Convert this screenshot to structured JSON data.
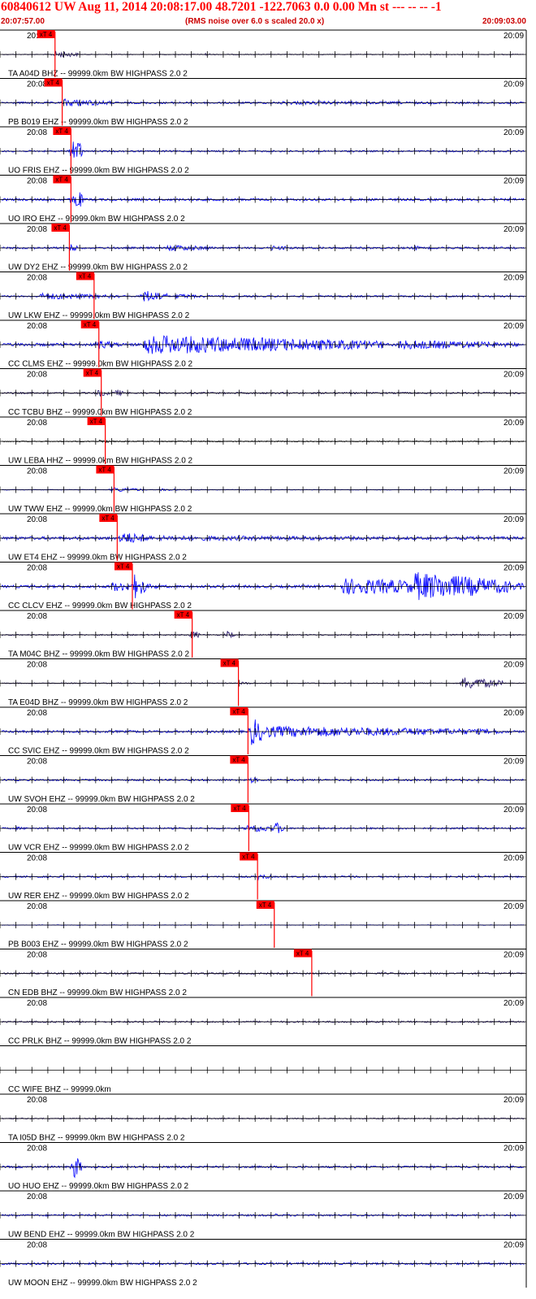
{
  "header": {
    "title": "60840612 UW Aug 11, 2014 20:08:17.00   48.7201 -122.7063  0.0 0.00 Mn st --- -- --  -1",
    "start_time": "20:07:57.00",
    "rms_note": "(RMS noise over 6.0 s scaled 20.0 x)",
    "end_time": "20:09:03.00"
  },
  "colors": {
    "trace_blue": "#0000ff",
    "trace_dark": "#2a1a6e",
    "trace_black": "#000000",
    "pick": "#ff0000",
    "header": "#ff0000"
  },
  "chart_data": {
    "type": "line",
    "x_start": "20:07:57.00",
    "x_end": "20:09:03.00",
    "x_range_s": [
      0,
      66
    ],
    "tick_label_left": "20:08",
    "tick_label_right": "20:09",
    "pick_label": "xT 4",
    "traces": [
      {
        "label": "TA A04D BHZ -- 99999.0km BW  HIGHPASS  2.0  2",
        "color": "dark",
        "pick_s": 6.9,
        "amp": 0.5,
        "bursts": [
          {
            "t": 6.8,
            "dur": 3,
            "amp": 4.5
          },
          {
            "t": 25.6,
            "dur": 1,
            "amp": 2
          }
        ]
      },
      {
        "label": "PB B019 EHZ -- 99999.0km BW  HIGHPASS  2.0  2",
        "color": "blue",
        "pick_s": 7.8,
        "amp": 1.2,
        "bursts": [
          {
            "t": 8,
            "dur": 6,
            "amp": 5
          },
          {
            "t": 35,
            "dur": 30,
            "amp": 2.2
          }
        ]
      },
      {
        "label": "UO FRIS EHZ -- 99999.0km BW  HIGHPASS  2.0  2",
        "color": "blue",
        "pick_s": 8.9,
        "amp": 1.0,
        "bursts": [
          {
            "t": 9.1,
            "dur": 1.3,
            "amp": 18
          }
        ]
      },
      {
        "label": "UO IRO EHZ -- 99999.0km BW  HIGHPASS  2.0  2",
        "color": "blue",
        "pick_s": 8.9,
        "amp": 1.4,
        "bursts": [
          {
            "t": 9.2,
            "dur": 1.2,
            "amp": 16
          }
        ]
      },
      {
        "label": "UW DY2 EHZ -- 99999.0km BW  HIGHPASS  2.0  2",
        "color": "blue",
        "pick_s": 8.7,
        "amp": 1.2,
        "bursts": [
          {
            "t": 8.8,
            "dur": 1,
            "amp": 5
          },
          {
            "t": 21,
            "dur": 6,
            "amp": 4
          },
          {
            "t": 34,
            "dur": 3,
            "amp": 3
          },
          {
            "t": 52,
            "dur": 0.5,
            "amp": 5
          }
        ]
      },
      {
        "label": "UW LKW EHZ -- 99999.0km BW  HIGHPASS  2.0  2",
        "color": "blue",
        "pick_s": 11.8,
        "amp": 1.0,
        "bursts": [
          {
            "t": 5,
            "dur": 10,
            "amp": 4
          },
          {
            "t": 18,
            "dur": 3,
            "amp": 8
          },
          {
            "t": 22,
            "dur": 4,
            "amp": 3
          }
        ]
      },
      {
        "label": "CC CLMS EHZ -- 99999.0km BW  HIGHPASS  2.0  2",
        "color": "blue",
        "pick_s": 12.4,
        "amp": 1.8,
        "bursts": [
          {
            "t": 12,
            "dur": 3,
            "amp": 6
          },
          {
            "t": 18,
            "dur": 30,
            "amp": 12
          },
          {
            "t": 50,
            "dur": 15,
            "amp": 6
          }
        ]
      },
      {
        "label": "CC TCBU BHZ -- 99999.0km BW  HIGHPASS  2.0  2",
        "color": "dark",
        "pick_s": 12.7,
        "amp": 1.0,
        "bursts": [
          {
            "t": 12.2,
            "dur": 1.5,
            "amp": 5
          },
          {
            "t": 14.5,
            "dur": 1,
            "amp": 5
          }
        ]
      },
      {
        "label": "UW LEBA HHZ -- 99999.0km BW  HIGHPASS  2.0  2",
        "color": "black",
        "pick_s": 13.2,
        "amp": 0.6,
        "bursts": [
          {
            "t": 12.4,
            "dur": 2,
            "amp": 2
          }
        ]
      },
      {
        "label": "UW TWW EHZ -- 99999.0km BW  HIGHPASS  2.0  2",
        "color": "blue",
        "pick_s": 14.3,
        "amp": 0.4,
        "bursts": [
          {
            "t": 14,
            "dur": 4,
            "amp": 3
          },
          {
            "t": 20,
            "dur": 3,
            "amp": 1.5
          }
        ]
      },
      {
        "label": "UW ET4 EHZ -- 99999.0km BW  HIGHPASS  2.0  2",
        "color": "blue",
        "pick_s": 14.7,
        "amp": 1.8,
        "bursts": [
          {
            "t": 15,
            "dur": 4,
            "amp": 8
          },
          {
            "t": 20,
            "dur": 45,
            "amp": 3
          }
        ]
      },
      {
        "label": "CC CLCV EHZ -- 99999.0km BW  HIGHPASS  2.0  2",
        "color": "blue",
        "pick_s": 16.6,
        "amp": 1.6,
        "bursts": [
          {
            "t": 16.8,
            "dur": 1.5,
            "amp": 16
          },
          {
            "t": 14,
            "dur": 6,
            "amp": 6
          },
          {
            "t": 43,
            "dur": 23,
            "amp": 10
          },
          {
            "t": 52,
            "dur": 12,
            "amp": 18
          }
        ]
      },
      {
        "label": "TA M04C BHZ -- 99999.0km BW  HIGHPASS  2.0  2",
        "color": "dark",
        "pick_s": 24.1,
        "amp": 0.8,
        "bursts": [
          {
            "t": 24.1,
            "dur": 1,
            "amp": 6
          },
          {
            "t": 28.5,
            "dur": 1,
            "amp": 5
          }
        ]
      },
      {
        "label": "TA E04D BHZ -- 99999.0km BW  HIGHPASS  2.0  2",
        "color": "dark",
        "pick_s": 29.9,
        "amp": 0.6,
        "bursts": [
          {
            "t": 30,
            "dur": 2,
            "amp": 2
          },
          {
            "t": 58,
            "dur": 5,
            "amp": 8
          }
        ]
      },
      {
        "label": "CC SVIC EHZ -- 99999.0km BW  HIGHPASS  2.0  2",
        "color": "blue",
        "pick_s": 31.1,
        "amp": 1.4,
        "bursts": [
          {
            "t": 31.5,
            "dur": 2,
            "amp": 18
          },
          {
            "t": 33,
            "dur": 30,
            "amp": 7
          }
        ]
      },
      {
        "label": "UW SVOH EHZ -- 99999.0km BW  HIGHPASS  2.0  2",
        "color": "blue",
        "pick_s": 31.1,
        "amp": 1.1,
        "bursts": [
          {
            "t": 31.4,
            "dur": 1,
            "amp": 4
          }
        ]
      },
      {
        "label": "UW VCR EHZ -- 99999.0km BW  HIGHPASS  2.0  2",
        "color": "blue",
        "pick_s": 31.2,
        "amp": 1.0,
        "bursts": [
          {
            "t": 2,
            "dur": 2,
            "amp": 2
          },
          {
            "t": 31,
            "dur": 5,
            "amp": 5
          },
          {
            "t": 34.5,
            "dur": 1,
            "amp": 9
          }
        ]
      },
      {
        "label": "UW RER EHZ -- 99999.0km BW  HIGHPASS  2.0  2",
        "color": "blue",
        "pick_s": 32.3,
        "amp": 1.0,
        "bursts": [
          {
            "t": 32.2,
            "dur": 2,
            "amp": 4
          }
        ]
      },
      {
        "label": "PB B003 EHZ -- 99999.0km BW  HIGHPASS  2.0  2",
        "color": "blue",
        "pick_s": 34.4,
        "amp": 0.3,
        "bursts": []
      },
      {
        "label": "CN EDB BHZ -- 99999.0km BW  HIGHPASS  2.0  2",
        "color": "dark",
        "pick_s": 39.1,
        "amp": 1.0,
        "bursts": []
      },
      {
        "label": "CC PRLK BHZ -- 99999.0km BW  HIGHPASS  2.0  2",
        "color": "dark",
        "pick_s": null,
        "amp": 1.0,
        "bursts": []
      },
      {
        "label": "CC WIFE BHZ -- 99999.0km",
        "color": "dark",
        "pick_s": null,
        "amp": 0,
        "bursts": [],
        "no_axis_label": true
      },
      {
        "label": "TA I05D BHZ -- 99999.0km BW  HIGHPASS  2.0  2",
        "color": "dark",
        "pick_s": null,
        "amp": 0.7,
        "bursts": []
      },
      {
        "label": "UO HUO EHZ -- 99999.0km BW  HIGHPASS  2.0  2",
        "color": "blue",
        "pick_s": null,
        "amp": 1.2,
        "bursts": [
          {
            "t": 9.2,
            "dur": 1,
            "amp": 16
          }
        ]
      },
      {
        "label": "UW BEND EHZ -- 99999.0km BW  HIGHPASS  2.0  2",
        "color": "blue",
        "pick_s": null,
        "amp": 1.1,
        "bursts": [
          {
            "t": 34.5,
            "dur": 1,
            "amp": 2
          }
        ]
      },
      {
        "label": "UW MOON EHZ -- 99999.0km BW  HIGHPASS  2.0  2",
        "color": "blue",
        "pick_s": null,
        "amp": 1.2,
        "bursts": []
      }
    ]
  }
}
